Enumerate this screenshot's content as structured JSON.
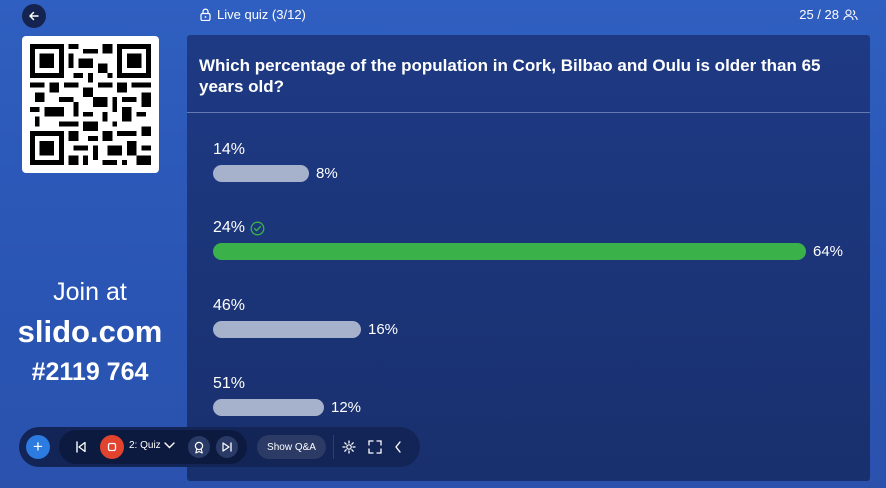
{
  "header": {
    "title": "Live quiz (3/12)",
    "participants": "25 / 28"
  },
  "join": {
    "line1": "Join at",
    "url": "slido.com",
    "code": "#2119 764"
  },
  "question": {
    "text": "Which percentage of the population in Cork, Bilbao and Oulu is older than 65 years old?",
    "options": [
      {
        "label": "14%",
        "votes": "8%",
        "share": 8,
        "correct": false
      },
      {
        "label": "24%",
        "votes": "64%",
        "share": 64,
        "correct": true
      },
      {
        "label": "46%",
        "votes": "16%",
        "share": 16,
        "correct": false
      },
      {
        "label": "51%",
        "votes": "12%",
        "share": 12,
        "correct": false
      }
    ]
  },
  "toolbar": {
    "poll_select": "2: Quiz",
    "show_qa": "Show Q&A"
  },
  "colors": {
    "background": "#2f5fc0",
    "panel": "#1e3a84",
    "correct_bar": "#3bb249",
    "bar": "#a6b1cc",
    "stop": "#e2432f",
    "add": "#2c7be0"
  }
}
